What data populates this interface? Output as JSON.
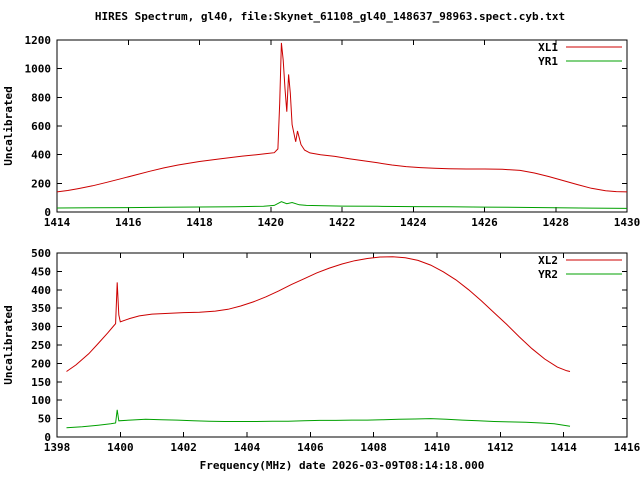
{
  "title": "HIRES Spectrum, gl40, file:Skynet_61108_gl40_148637_98963.spect.cyb.txt",
  "colors": {
    "series_red": "#cc0000",
    "series_green": "#00a000",
    "axis": "#000000",
    "background": "#ffffff"
  },
  "chart_data": [
    {
      "type": "line",
      "title": "",
      "xlabel": "",
      "ylabel": "Uncalibrated",
      "xlim": [
        1414,
        1430
      ],
      "ylim": [
        0,
        1200
      ],
      "xtick_step": 2,
      "ytick_step": 200,
      "grid": false,
      "legend_position": "top-right",
      "series": [
        {
          "name": "XL1",
          "color": "#cc0000",
          "points": [
            [
              1414.0,
              140
            ],
            [
              1414.3,
              150
            ],
            [
              1414.6,
              163
            ],
            [
              1415.0,
              183
            ],
            [
              1415.4,
              207
            ],
            [
              1415.8,
              232
            ],
            [
              1416.2,
              258
            ],
            [
              1416.6,
              284
            ],
            [
              1417.0,
              308
            ],
            [
              1417.4,
              328
            ],
            [
              1418.0,
              352
            ],
            [
              1418.6,
              372
            ],
            [
              1419.2,
              390
            ],
            [
              1419.6,
              400
            ],
            [
              1419.9,
              408
            ],
            [
              1420.1,
              414
            ],
            [
              1420.2,
              440
            ],
            [
              1420.25,
              760
            ],
            [
              1420.3,
              1180
            ],
            [
              1420.35,
              1060
            ],
            [
              1420.4,
              860
            ],
            [
              1420.45,
              700
            ],
            [
              1420.5,
              960
            ],
            [
              1420.55,
              830
            ],
            [
              1420.6,
              610
            ],
            [
              1420.7,
              490
            ],
            [
              1420.75,
              565
            ],
            [
              1420.85,
              470
            ],
            [
              1420.95,
              432
            ],
            [
              1421.1,
              412
            ],
            [
              1421.4,
              400
            ],
            [
              1421.8,
              388
            ],
            [
              1422.2,
              372
            ],
            [
              1422.6,
              357
            ],
            [
              1423.0,
              343
            ],
            [
              1423.4,
              328
            ],
            [
              1423.8,
              317
            ],
            [
              1424.2,
              310
            ],
            [
              1424.6,
              305
            ],
            [
              1425.0,
              302
            ],
            [
              1425.5,
              300
            ],
            [
              1426.0,
              300
            ],
            [
              1426.5,
              298
            ],
            [
              1427.0,
              290
            ],
            [
              1427.4,
              272
            ],
            [
              1427.8,
              248
            ],
            [
              1428.2,
              220
            ],
            [
              1428.6,
              192
            ],
            [
              1429.0,
              165
            ],
            [
              1429.4,
              148
            ],
            [
              1429.7,
              142
            ],
            [
              1430.0,
              140
            ]
          ]
        },
        {
          "name": "YR1",
          "color": "#00a000",
          "points": [
            [
              1414,
              28
            ],
            [
              1415,
              30
            ],
            [
              1416,
              31
            ],
            [
              1417,
              33
            ],
            [
              1418,
              35
            ],
            [
              1419,
              37
            ],
            [
              1419.8,
              40
            ],
            [
              1420.1,
              46
            ],
            [
              1420.3,
              72
            ],
            [
              1420.45,
              58
            ],
            [
              1420.6,
              66
            ],
            [
              1420.8,
              50
            ],
            [
              1421.0,
              46
            ],
            [
              1421.5,
              43
            ],
            [
              1422,
              41
            ],
            [
              1423,
              40
            ],
            [
              1424,
              38
            ],
            [
              1425,
              36
            ],
            [
              1426,
              34
            ],
            [
              1427,
              32
            ],
            [
              1428,
              30
            ],
            [
              1429,
              27
            ],
            [
              1430,
              25
            ]
          ]
        }
      ]
    },
    {
      "type": "line",
      "title": "",
      "xlabel": "Frequency(MHz) date 2026-03-09T08:14:18.000",
      "ylabel": "Uncalibrated",
      "xlim": [
        1398,
        1416
      ],
      "ylim": [
        0,
        500
      ],
      "xtick_step": 2,
      "ytick_step": 50,
      "grid": false,
      "legend_position": "top-right",
      "series": [
        {
          "name": "XL2",
          "color": "#cc0000",
          "points": [
            [
              1398.3,
              178
            ],
            [
              1398.6,
              196
            ],
            [
              1399.0,
              226
            ],
            [
              1399.3,
              254
            ],
            [
              1399.6,
              283
            ],
            [
              1399.8,
              303
            ],
            [
              1399.85,
              308
            ],
            [
              1399.9,
              420
            ],
            [
              1399.95,
              332
            ],
            [
              1400.0,
              313
            ],
            [
              1400.3,
              322
            ],
            [
              1400.6,
              329
            ],
            [
              1401.0,
              334
            ],
            [
              1401.5,
              336
            ],
            [
              1402.0,
              338
            ],
            [
              1402.5,
              339
            ],
            [
              1403.0,
              342
            ],
            [
              1403.4,
              347
            ],
            [
              1403.8,
              356
            ],
            [
              1404.2,
              367
            ],
            [
              1404.6,
              381
            ],
            [
              1405.0,
              397
            ],
            [
              1405.4,
              414
            ],
            [
              1405.8,
              430
            ],
            [
              1406.2,
              446
            ],
            [
              1406.6,
              459
            ],
            [
              1407.0,
              470
            ],
            [
              1407.4,
              479
            ],
            [
              1407.8,
              485
            ],
            [
              1408.2,
              489
            ],
            [
              1408.6,
              490
            ],
            [
              1409.0,
              487
            ],
            [
              1409.4,
              480
            ],
            [
              1409.8,
              467
            ],
            [
              1410.2,
              449
            ],
            [
              1410.6,
              427
            ],
            [
              1411.0,
              400
            ],
            [
              1411.4,
              370
            ],
            [
              1411.8,
              338
            ],
            [
              1412.2,
              306
            ],
            [
              1412.6,
              272
            ],
            [
              1413.0,
              240
            ],
            [
              1413.4,
              212
            ],
            [
              1413.8,
              190
            ],
            [
              1414.1,
              180
            ],
            [
              1414.2,
              178
            ]
          ]
        },
        {
          "name": "YR2",
          "color": "#00a000",
          "points": [
            [
              1398.3,
              25
            ],
            [
              1398.8,
              28
            ],
            [
              1399.3,
              32
            ],
            [
              1399.7,
              36
            ],
            [
              1399.85,
              38
            ],
            [
              1399.9,
              74
            ],
            [
              1399.95,
              44
            ],
            [
              1400.3,
              46
            ],
            [
              1400.8,
              48
            ],
            [
              1401.3,
              47
            ],
            [
              1401.8,
              46
            ],
            [
              1402.3,
              44
            ],
            [
              1402.8,
              43
            ],
            [
              1403.3,
              42
            ],
            [
              1403.8,
              42
            ],
            [
              1404.3,
              42
            ],
            [
              1404.8,
              43
            ],
            [
              1405.3,
              43
            ],
            [
              1405.8,
              44
            ],
            [
              1406.3,
              45
            ],
            [
              1406.8,
              45
            ],
            [
              1407.3,
              46
            ],
            [
              1407.8,
              46
            ],
            [
              1408.3,
              47
            ],
            [
              1408.8,
              48
            ],
            [
              1409.3,
              49
            ],
            [
              1409.8,
              50
            ],
            [
              1410.3,
              48
            ],
            [
              1410.8,
              46
            ],
            [
              1411.3,
              44
            ],
            [
              1411.8,
              42
            ],
            [
              1412.3,
              41
            ],
            [
              1412.8,
              40
            ],
            [
              1413.3,
              38
            ],
            [
              1413.7,
              36
            ],
            [
              1414.0,
              32
            ],
            [
              1414.2,
              29
            ]
          ]
        }
      ]
    }
  ]
}
